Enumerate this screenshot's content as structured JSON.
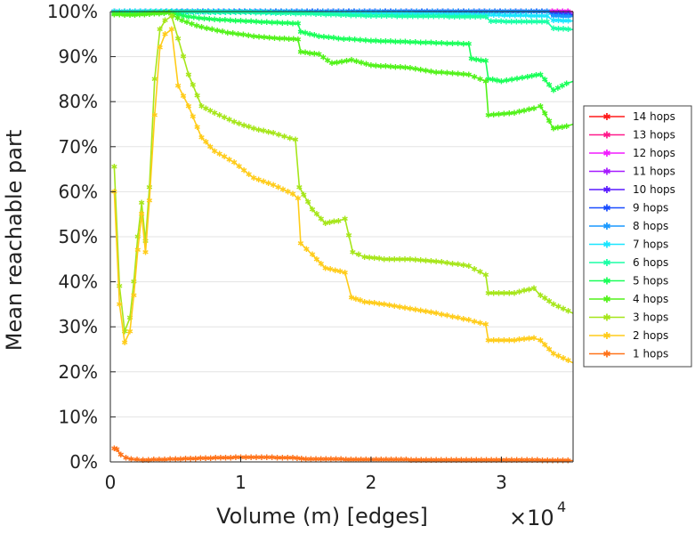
{
  "chart_data": {
    "type": "line",
    "title": "",
    "xlabel": "Volume (m) [edges]",
    "ylabel": "Mean reachable part",
    "x_multiplier": {
      "base": "×10",
      "exponent": "4"
    },
    "xlim": [
      0,
      35500
    ],
    "ylim": [
      0,
      100
    ],
    "xticks": [
      0,
      10000,
      20000,
      30000
    ],
    "xtick_labels": [
      "0",
      "1",
      "2",
      "3"
    ],
    "yticks": [
      0,
      10,
      20,
      30,
      40,
      50,
      60,
      70,
      80,
      90,
      100
    ],
    "ytick_labels": [
      "0%",
      "10%",
      "20%",
      "30%",
      "40%",
      "50%",
      "60%",
      "70%",
      "80%",
      "90%",
      "100%"
    ],
    "grid": "horizontal",
    "legend_position": "right",
    "series": [
      {
        "name": "14 hops",
        "color": "#ff1a1a",
        "x": [
          300,
          35500
        ],
        "y": [
          100,
          100
        ]
      },
      {
        "name": "13 hops",
        "color": "#ff1a8c",
        "x": [
          300,
          35500
        ],
        "y": [
          100,
          100
        ]
      },
      {
        "name": "12 hops",
        "color": "#f21aff",
        "x": [
          300,
          35500
        ],
        "y": [
          100,
          100
        ]
      },
      {
        "name": "11 hops",
        "color": "#a61aff",
        "x": [
          300,
          33500,
          34000,
          35500
        ],
        "y": [
          100,
          100,
          99.7,
          99.6
        ]
      },
      {
        "name": "10 hops",
        "color": "#5a1aff",
        "x": [
          300,
          33500,
          34000,
          35500
        ],
        "y": [
          100,
          100,
          99.4,
          99.3
        ]
      },
      {
        "name": "9 hops",
        "color": "#1a4dff",
        "x": [
          300,
          33500,
          34000,
          35500
        ],
        "y": [
          100,
          100,
          99.3,
          99.2
        ]
      },
      {
        "name": "8 hops",
        "color": "#1a99ff",
        "x": [
          300,
          33500,
          34000,
          35500
        ],
        "y": [
          100,
          100,
          99.0,
          98.9
        ]
      },
      {
        "name": "7 hops",
        "color": "#1ae6ff",
        "x": [
          300,
          10000,
          20000,
          29000,
          33500,
          34000,
          35500
        ],
        "y": [
          100,
          99.9,
          99.6,
          99.2,
          99,
          98.0,
          97.9
        ]
      },
      {
        "name": "6 hops",
        "color": "#1affa6",
        "x": [
          300,
          5000,
          10000,
          15000,
          20000,
          28800,
          29200,
          33500,
          34000,
          35500
        ],
        "y": [
          99.8,
          99.9,
          99.8,
          99.5,
          99,
          98.8,
          97.8,
          97.7,
          96.2,
          96
        ]
      },
      {
        "name": "5 hops",
        "color": "#1aff59",
        "x": [
          300,
          1500,
          3000,
          4500,
          6000,
          8000,
          10000,
          12000,
          14400,
          14600,
          16000,
          17500,
          20000,
          23000,
          25000,
          27500,
          27700,
          28800,
          29000,
          30000,
          32000,
          33000,
          34000,
          35000,
          35500
        ],
        "y": [
          99.5,
          99.4,
          99.5,
          99.8,
          98.8,
          98.2,
          97.9,
          97.6,
          97.3,
          95.5,
          94.5,
          94,
          93.5,
          93.2,
          93,
          92.8,
          89.5,
          89,
          85,
          84.5,
          85.5,
          86,
          82.5,
          84,
          84.5
        ]
      },
      {
        "name": "4 hops",
        "color": "#52f21a",
        "x": [
          300,
          1500,
          3000,
          4500,
          5500,
          7000,
          9000,
          11000,
          13000,
          14400,
          14600,
          16000,
          17000,
          18500,
          20000,
          23000,
          25000,
          27500,
          28800,
          29000,
          31000,
          32500,
          33000,
          34000,
          35000,
          35500
        ],
        "y": [
          99.3,
          99.2,
          99.4,
          99.7,
          98,
          96.5,
          95.3,
          94.5,
          94,
          93.8,
          91,
          90.5,
          88.5,
          89.2,
          88,
          87.5,
          86.5,
          86,
          84.5,
          77,
          77.5,
          78.5,
          79,
          74,
          74.5,
          75
        ]
      },
      {
        "name": "3 hops",
        "color": "#a6e61a",
        "x": [
          300,
          700,
          1100,
          1500,
          1800,
          2100,
          2400,
          2700,
          3000,
          3400,
          3800,
          4200,
          4700,
          5200,
          6000,
          7000,
          8000,
          9500,
          11000,
          12500,
          14200,
          14500,
          15500,
          16500,
          17500,
          18000,
          18600,
          19500,
          21000,
          23000,
          25000,
          27500,
          28800,
          29000,
          31000,
          32500,
          33000,
          34000,
          35500
        ],
        "y": [
          65.5,
          39,
          29,
          32,
          40,
          50,
          57.5,
          49,
          61,
          85,
          96,
          98,
          99,
          94,
          86,
          79,
          77.5,
          75.5,
          74,
          73,
          71.5,
          61,
          56,
          53,
          53.5,
          54,
          46.5,
          45.5,
          45,
          45,
          44.5,
          43.5,
          41.5,
          37.5,
          37.5,
          38.5,
          37,
          35,
          33
        ]
      },
      {
        "name": "2 hops",
        "color": "#ffcc1a",
        "x": [
          300,
          700,
          1100,
          1500,
          1800,
          2100,
          2400,
          2700,
          3000,
          3400,
          3800,
          4200,
          4700,
          5200,
          6000,
          7000,
          8000,
          9500,
          11000,
          12500,
          14000,
          14400,
          14600,
          15500,
          16500,
          18000,
          18500,
          19500,
          21000,
          23000,
          25000,
          27500,
          28800,
          29000,
          31000,
          32500,
          33000,
          34000,
          35500
        ],
        "y": [
          60,
          35,
          26.5,
          29,
          37,
          47,
          55,
          46.5,
          58,
          77,
          92,
          95,
          96,
          83.5,
          79,
          72,
          69,
          66.5,
          63,
          61.5,
          59.5,
          58.5,
          48.5,
          46,
          43,
          42,
          36.5,
          35.5,
          35,
          34,
          33,
          31.5,
          30.5,
          27,
          27,
          27.5,
          27,
          24,
          22
        ]
      },
      {
        "name": "1 hops",
        "color": "#ff731a",
        "x": [
          300,
          500,
          800,
          1200,
          1600,
          2500,
          5000,
          10000,
          14000,
          15000,
          20000,
          25000,
          30000,
          35500
        ],
        "y": [
          3,
          2.8,
          1.6,
          0.9,
          0.6,
          0.4,
          0.6,
          1,
          0.9,
          0.6,
          0.5,
          0.4,
          0.4,
          0.3
        ]
      }
    ]
  }
}
